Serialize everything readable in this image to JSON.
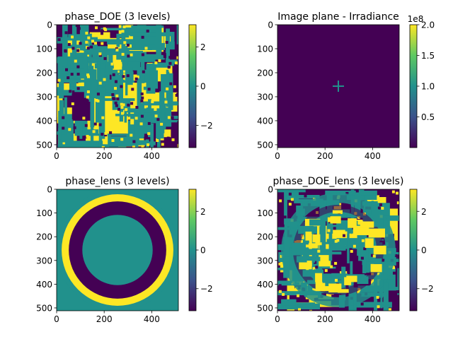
{
  "chart_data": [
    {
      "type": "heatmap",
      "title": "phase_DOE (3 levels)",
      "pattern": "random_pixelated_three_level_phase_mask",
      "levels": [
        -3.14159,
        0,
        3.14159
      ],
      "xlim": [
        0,
        512
      ],
      "ylim": [
        512,
        0
      ],
      "xticks": [
        "0",
        "200",
        "400"
      ],
      "yticks": [
        "0",
        "100",
        "200",
        "300",
        "400",
        "500"
      ],
      "colorbar": {
        "ticks": [
          "2",
          "0",
          "−2"
        ],
        "tick_values": [
          2,
          0,
          -2
        ],
        "range": [
          -3.14159,
          3.14159
        ]
      },
      "colormap": "viridis"
    },
    {
      "type": "heatmap",
      "title": "Image plane - Irradiance",
      "pattern": "dark_field_with_central_cross",
      "spot_center": [
        256,
        256
      ],
      "xlim": [
        0,
        512
      ],
      "ylim": [
        512,
        0
      ],
      "xticks": [
        "0",
        "200",
        "400"
      ],
      "yticks": [
        "0",
        "100",
        "200",
        "300",
        "400",
        "500"
      ],
      "colorbar": {
        "ticks": [
          "2.0",
          "1.5",
          "1.0",
          "0.5"
        ],
        "tick_values": [
          2.0,
          1.5,
          1.0,
          0.5
        ],
        "range": [
          0,
          2.0
        ],
        "offset_label": "1e8"
      },
      "colormap": "viridis"
    },
    {
      "type": "heatmap",
      "title": "phase_lens (3 levels)",
      "pattern": "concentric_rings_three_level",
      "rings": [
        {
          "outer_radius": 256,
          "level": 0
        },
        {
          "outer_radius": 235,
          "level": 3.14159
        },
        {
          "outer_radius": 205,
          "level": -3.14159
        },
        {
          "outer_radius": 148,
          "level": 0
        }
      ],
      "xlim": [
        0,
        512
      ],
      "ylim": [
        512,
        0
      ],
      "xticks": [
        "0",
        "200",
        "400"
      ],
      "yticks": [
        "0",
        "100",
        "200",
        "300",
        "400",
        "500"
      ],
      "colorbar": {
        "ticks": [
          "2",
          "0",
          "−2"
        ],
        "tick_values": [
          2,
          0,
          -2
        ],
        "range": [
          -3.14159,
          3.14159
        ]
      },
      "colormap": "viridis"
    },
    {
      "type": "heatmap",
      "title": "phase_DOE_lens (3 levels)",
      "pattern": "random_mask_combined_with_rings",
      "xlim": [
        0,
        512
      ],
      "ylim": [
        512,
        0
      ],
      "xticks": [
        "0",
        "200",
        "400"
      ],
      "yticks": [
        "0",
        "100",
        "200",
        "300",
        "400",
        "500"
      ],
      "colorbar": {
        "ticks": [
          "2",
          "0",
          "−2"
        ],
        "tick_values": [
          2,
          0,
          -2
        ],
        "range": [
          -3.14159,
          3.14159
        ]
      },
      "colormap": "viridis"
    }
  ],
  "colors": {
    "low": "#440154",
    "mid": "#21918c",
    "high": "#fde725",
    "colormap_stops": [
      "#440154",
      "#3b528b",
      "#21918c",
      "#5ec962",
      "#fde725"
    ]
  }
}
